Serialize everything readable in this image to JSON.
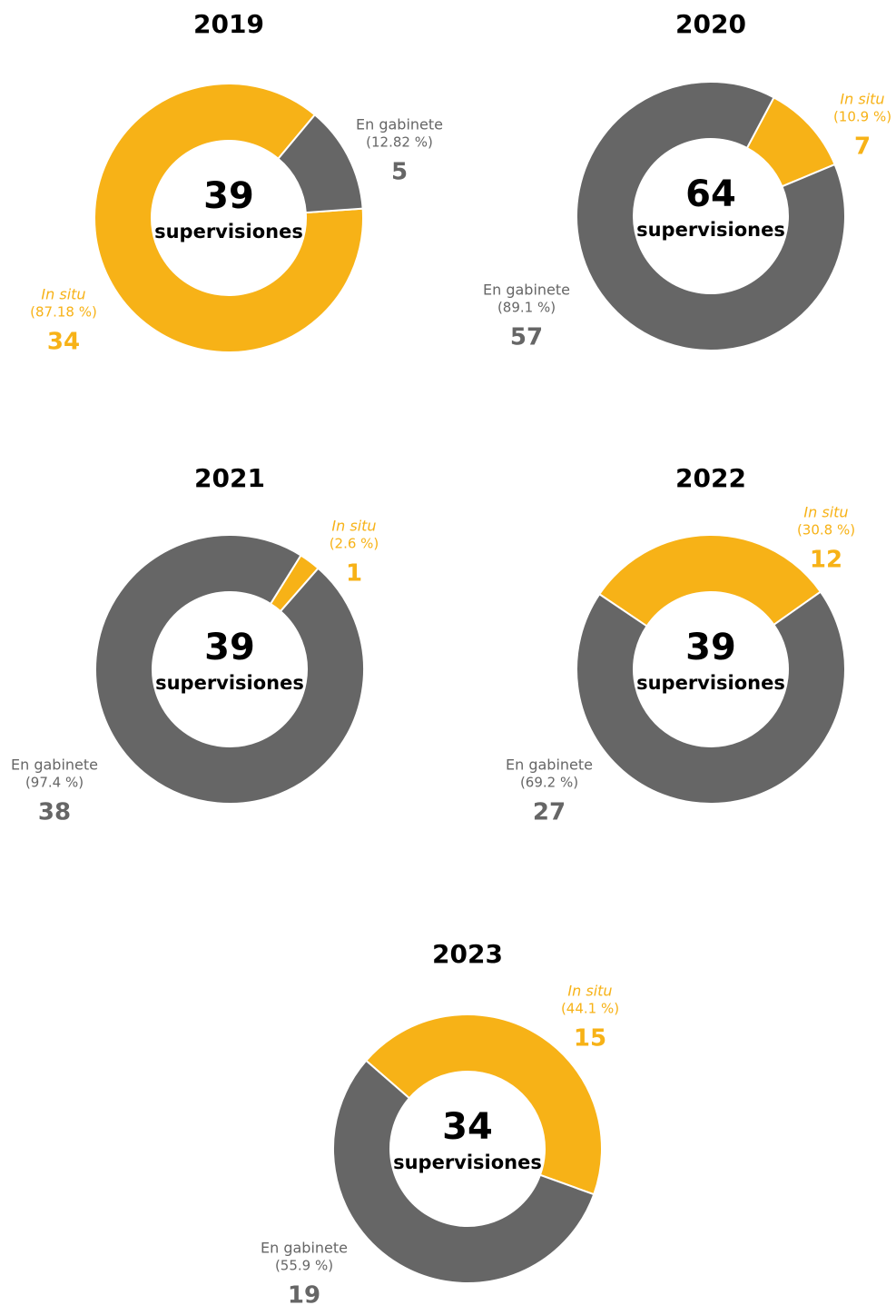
{
  "chart_data": [
    {
      "type": "donut",
      "title": "2019",
      "total": 39,
      "center_label": "supervisiones",
      "categories": [
        "In situ",
        "En gabinete"
      ],
      "values": [
        34,
        5
      ],
      "percent_labels": [
        "(87.18 %)",
        "(12.82 %)"
      ],
      "colors": [
        "#f7b217",
        "#666666"
      ]
    },
    {
      "type": "donut",
      "title": "2020",
      "total": 64,
      "center_label": "supervisiones",
      "categories": [
        "In situ",
        "En gabinete"
      ],
      "values": [
        7,
        57
      ],
      "percent_labels": [
        "(10.9 %)",
        "(89.1 %)"
      ],
      "colors": [
        "#f7b217",
        "#666666"
      ]
    },
    {
      "type": "donut",
      "title": "2021",
      "total": 39,
      "center_label": "supervisiones",
      "categories": [
        "In situ",
        "En gabinete"
      ],
      "values": [
        1,
        38
      ],
      "percent_labels": [
        "(2.6 %)",
        "(97.4 %)"
      ],
      "colors": [
        "#f7b217",
        "#666666"
      ]
    },
    {
      "type": "donut",
      "title": "2022",
      "total": 39,
      "center_label": "supervisiones",
      "categories": [
        "In situ",
        "En gabinete"
      ],
      "values": [
        12,
        27
      ],
      "percent_labels": [
        "(30.8 %)",
        "(69.2 %)"
      ],
      "colors": [
        "#f7b217",
        "#666666"
      ]
    },
    {
      "type": "donut",
      "title": "2023",
      "total": 34,
      "center_label": "supervisiones",
      "categories": [
        "In situ",
        "En gabinete"
      ],
      "values": [
        15,
        19
      ],
      "percent_labels": [
        "(44.1 %)",
        "(55.9 %)"
      ],
      "colors": [
        "#f7b217",
        "#666666"
      ]
    }
  ]
}
